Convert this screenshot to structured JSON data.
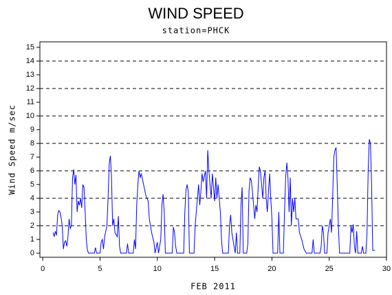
{
  "chart_data": {
    "type": "line",
    "title": "WIND SPEED",
    "subtitle": "station=PHCK",
    "x_label": "FEB 2011",
    "y_label": "Wind Speed m/sec",
    "color": "#0000ff",
    "grid": true,
    "grid_values": [
      2,
      4,
      6,
      8,
      10,
      12,
      14
    ],
    "xlim": [
      -0.25,
      30
    ],
    "ylim": [
      -0.3,
      15.4
    ],
    "xticks": [
      0,
      5,
      10,
      15,
      20,
      25,
      30
    ],
    "yticks": [
      0,
      1,
      2,
      3,
      4,
      5,
      6,
      7,
      8,
      9,
      10,
      11,
      12,
      13,
      14,
      15
    ],
    "x": [
      0.9,
      1.0,
      1.1,
      1.2,
      1.3,
      1.4,
      1.5,
      1.6,
      1.7,
      1.8,
      1.9,
      2.0,
      2.1,
      2.2,
      2.3,
      2.4,
      2.5,
      2.6,
      2.7,
      2.8,
      2.9,
      3.0,
      3.1,
      3.2,
      3.3,
      3.4,
      3.5,
      3.6,
      3.7,
      3.8,
      3.9,
      4.0,
      4.5,
      4.6,
      4.7,
      5.0,
      5.1,
      5.2,
      5.3,
      5.4,
      5.6,
      5.7,
      5.8,
      5.9,
      6.0,
      6.1,
      6.2,
      6.3,
      6.5,
      6.6,
      6.7,
      6.8,
      7.3,
      7.4,
      7.5,
      7.9,
      8.0,
      8.1,
      8.2,
      8.3,
      8.4,
      8.5,
      8.6,
      8.8,
      9.0,
      9.2,
      9.3,
      9.5,
      9.7,
      9.8,
      10.0,
      10.1,
      10.3,
      10.4,
      10.5,
      10.6,
      10.7,
      11.3,
      11.4,
      11.5,
      11.6,
      11.7,
      12.3,
      12.4,
      12.5,
      12.6,
      12.7,
      12.8,
      13.2,
      13.3,
      13.5,
      13.6,
      13.7,
      13.8,
      13.9,
      14.0,
      14.2,
      14.3,
      14.4,
      14.5,
      14.6,
      14.7,
      14.8,
      15.0,
      15.1,
      15.2,
      15.3,
      15.5,
      15.6,
      15.7,
      16.2,
      16.3,
      16.4,
      16.5,
      16.6,
      16.8,
      16.9,
      17.0,
      17.2,
      17.3,
      17.4,
      17.5,
      17.8,
      17.9,
      18.0,
      18.1,
      18.2,
      18.3,
      18.4,
      18.5,
      18.6,
      18.7,
      18.8,
      18.9,
      19.0,
      19.1,
      19.2,
      19.3,
      19.4,
      19.5,
      19.6,
      19.7,
      19.8,
      19.9,
      20.0,
      20.1,
      20.5,
      20.6,
      20.7,
      21.0,
      21.1,
      21.2,
      21.3,
      21.4,
      21.5,
      21.6,
      21.7,
      21.8,
      21.9,
      22.0,
      22.1,
      22.3,
      22.4,
      22.6,
      22.8,
      23.0,
      23.5,
      23.6,
      23.7,
      24.2,
      24.3,
      24.4,
      24.5,
      24.6,
      24.8,
      24.9,
      25.1,
      25.2,
      25.3,
      25.4,
      25.5,
      25.6,
      25.7,
      25.8,
      25.9,
      26.8,
      26.9,
      27.0,
      27.1,
      27.2,
      27.3,
      27.4,
      27.5,
      27.8,
      27.9,
      28.0,
      28.2,
      28.3,
      28.4,
      28.5,
      28.6,
      28.7,
      28.8,
      29.0
    ],
    "values": [
      1.5,
      1.2,
      1.6,
      1.3,
      2.8,
      3.1,
      3.0,
      2.6,
      2.0,
      0.3,
      0.8,
      0.9,
      0.5,
      1.2,
      2.5,
      1.8,
      2.0,
      5.5,
      6.1,
      5.0,
      5.7,
      3.0,
      3.8,
      3.5,
      4.0,
      3.3,
      5.0,
      4.8,
      3.0,
      1.0,
      0.2,
      0.0,
      0.0,
      0.4,
      0.0,
      0.0,
      0.8,
      1.0,
      0.3,
      1.2,
      2.0,
      4.0,
      6.5,
      7.1,
      5.5,
      2.0,
      2.5,
      1.5,
      1.2,
      2.7,
      0.5,
      0.0,
      0.0,
      0.7,
      0.0,
      0.0,
      1.0,
      0.3,
      3.5,
      5.0,
      6.0,
      5.5,
      5.8,
      5.0,
      4.2,
      3.8,
      2.5,
      1.5,
      0.8,
      0.0,
      0.8,
      0.0,
      1.0,
      3.5,
      4.3,
      3.0,
      0.0,
      0.0,
      1.9,
      1.5,
      0.5,
      0.0,
      0.0,
      3.0,
      4.6,
      5.0,
      4.5,
      0.0,
      0.0,
      2.0,
      4.0,
      5.0,
      3.5,
      4.5,
      5.8,
      5.2,
      6.0,
      4.0,
      7.5,
      6.0,
      5.0,
      4.0,
      5.8,
      3.8,
      5.5,
      4.0,
      5.0,
      3.0,
      1.0,
      0.0,
      0.0,
      2.0,
      2.8,
      1.5,
      1.0,
      0.0,
      1.5,
      0.0,
      0.0,
      3.5,
      4.8,
      0.0,
      0.0,
      0.7,
      4.5,
      5.5,
      5.3,
      4.5,
      3.5,
      2.5,
      3.5,
      3.0,
      4.8,
      6.3,
      6.0,
      5.0,
      4.0,
      5.5,
      6.0,
      4.0,
      3.0,
      4.5,
      5.8,
      4.0,
      2.5,
      0.0,
      0.0,
      3.0,
      0.0,
      0.0,
      3.0,
      5.5,
      6.6,
      5.5,
      3.0,
      5.5,
      2.0,
      4.0,
      3.0,
      4.0,
      2.5,
      2.5,
      1.5,
      1.0,
      0.3,
      0.0,
      0.0,
      1.0,
      0.0,
      0.0,
      0.5,
      2.0,
      1.5,
      0.0,
      0.0,
      1.5,
      2.5,
      1.5,
      4.0,
      7.0,
      7.5,
      7.7,
      5.0,
      2.0,
      0.0,
      0.0,
      2.0,
      1.5,
      2.1,
      0.5,
      0.0,
      1.6,
      0.0,
      0.0,
      0.5,
      0.0,
      0.0,
      1.5,
      6.0,
      8.3,
      8.0,
      5.0,
      0.2,
      0.2
    ]
  }
}
